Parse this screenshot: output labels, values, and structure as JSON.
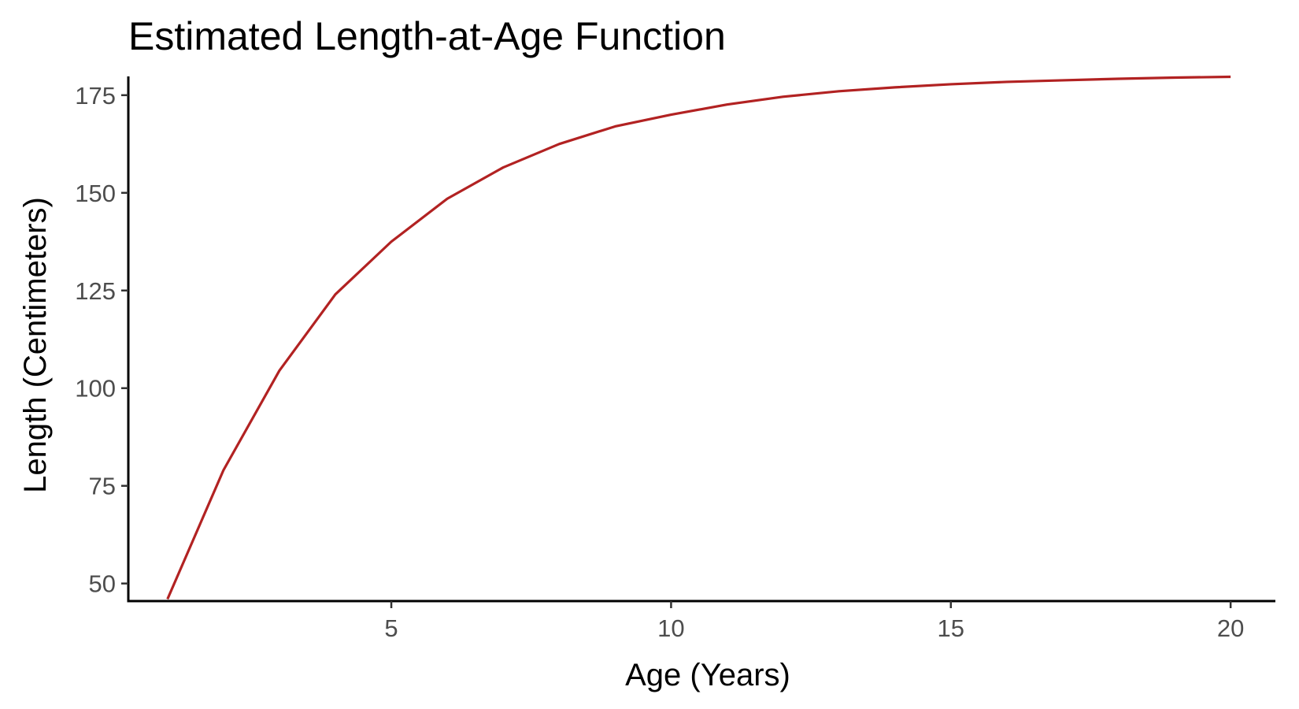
{
  "chart_data": {
    "type": "line",
    "title": "Estimated Length-at-Age Function",
    "xlabel": "Age (Years)",
    "ylabel": "Length (Centimeters)",
    "xlim": [
      0.3,
      20.8
    ],
    "ylim": [
      45.5,
      179.8
    ],
    "x_ticks": [
      5,
      10,
      15,
      20
    ],
    "y_ticks": [
      50,
      75,
      100,
      125,
      150,
      175
    ],
    "grid": false,
    "legend": "none",
    "series": [
      {
        "color": "#b22222",
        "x": [
          1,
          2,
          3,
          4,
          5,
          6,
          7,
          8,
          9,
          10,
          11,
          12,
          13,
          14,
          15,
          16,
          17,
          18,
          19,
          20
        ],
        "y": [
          46,
          79,
          104.5,
          124,
          137.5,
          148.5,
          156.5,
          162.5,
          167,
          170,
          172.6,
          174.6,
          176,
          177,
          177.8,
          178.4,
          178.8,
          179.2,
          179.5,
          179.7
        ]
      }
    ]
  }
}
